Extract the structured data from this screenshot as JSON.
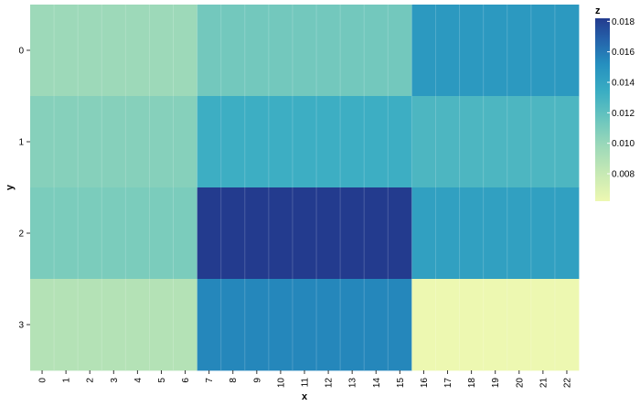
{
  "chart_data": {
    "type": "heatmap",
    "xlabel": "x",
    "ylabel": "y",
    "legend_title": "z",
    "legend_position": "right",
    "x_categories": [
      "0",
      "1",
      "2",
      "3",
      "4",
      "5",
      "6",
      "7",
      "8",
      "9",
      "10",
      "11",
      "12",
      "13",
      "14",
      "15",
      "16",
      "17",
      "18",
      "19",
      "20",
      "21",
      "22"
    ],
    "y_categories": [
      "0",
      "1",
      "2",
      "3"
    ],
    "colorbar": {
      "min": 0.0062,
      "max": 0.0182,
      "ticks": [
        "0.008",
        "0.010",
        "0.012",
        "0.014",
        "0.016",
        "0.018"
      ],
      "scheme": "YlGnBu"
    },
    "blocks": [
      {
        "y": "0",
        "x_from": 0,
        "x_to": 6,
        "z": 0.0098
      },
      {
        "y": "0",
        "x_from": 7,
        "x_to": 15,
        "z": 0.0113
      },
      {
        "y": "0",
        "x_from": 16,
        "x_to": 22,
        "z": 0.0146
      },
      {
        "y": "1",
        "x_from": 0,
        "x_to": 6,
        "z": 0.0106
      },
      {
        "y": "1",
        "x_from": 7,
        "x_to": 15,
        "z": 0.0133
      },
      {
        "y": "1",
        "x_from": 16,
        "x_to": 22,
        "z": 0.0127
      },
      {
        "y": "2",
        "x_from": 0,
        "x_to": 6,
        "z": 0.011
      },
      {
        "y": "2",
        "x_from": 7,
        "x_to": 15,
        "z": 0.0182
      },
      {
        "y": "2",
        "x_from": 16,
        "x_to": 22,
        "z": 0.0142
      },
      {
        "y": "3",
        "x_from": 0,
        "x_to": 6,
        "z": 0.0088
      },
      {
        "y": "3",
        "x_from": 7,
        "x_to": 15,
        "z": 0.0155
      },
      {
        "y": "3",
        "x_from": 16,
        "x_to": 22,
        "z": 0.0062
      }
    ]
  }
}
